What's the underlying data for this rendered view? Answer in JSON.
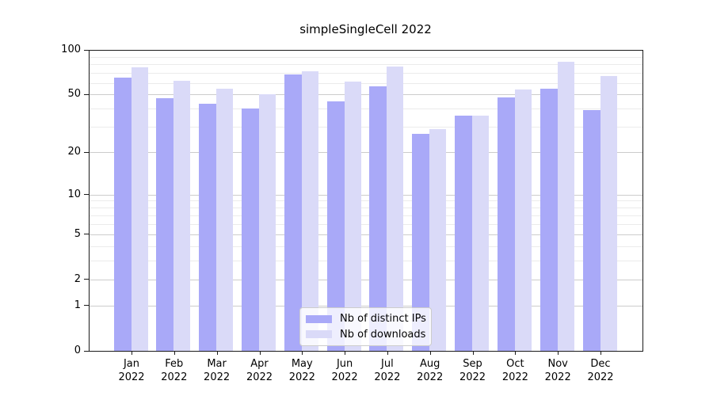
{
  "chart_data": {
    "type": "bar",
    "title": "simpleSingleCell 2022",
    "yscale": "log1p",
    "ylim": [
      0,
      100
    ],
    "grid": true,
    "legend_position": "lower center",
    "categories": [
      "Jan",
      "Feb",
      "Mar",
      "Apr",
      "May",
      "Jun",
      "Jul",
      "Aug",
      "Sep",
      "Oct",
      "Nov",
      "Dec"
    ],
    "category_year": "2022",
    "series": [
      {
        "name": "Nb of distinct IPs",
        "color": "#a9a9f8",
        "values": [
          65,
          47,
          43,
          40,
          68,
          45,
          57,
          27,
          36,
          48,
          55,
          39
        ]
      },
      {
        "name": "Nb of downloads",
        "color": "#dadaf8",
        "values": [
          76,
          62,
          55,
          50,
          72,
          61,
          77,
          29,
          36,
          54,
          83,
          67
        ]
      }
    ],
    "yticks": [
      0,
      1,
      2,
      5,
      10,
      20,
      50,
      100
    ],
    "minor_gridlines": [
      3,
      4,
      6,
      7,
      8,
      9,
      30,
      40,
      60,
      70,
      80,
      90
    ],
    "colors": {
      "major_grid": "#cccccc",
      "minor_grid": "#ebebeb",
      "axis": "#1a1a1a",
      "background": "#ffffff"
    }
  }
}
